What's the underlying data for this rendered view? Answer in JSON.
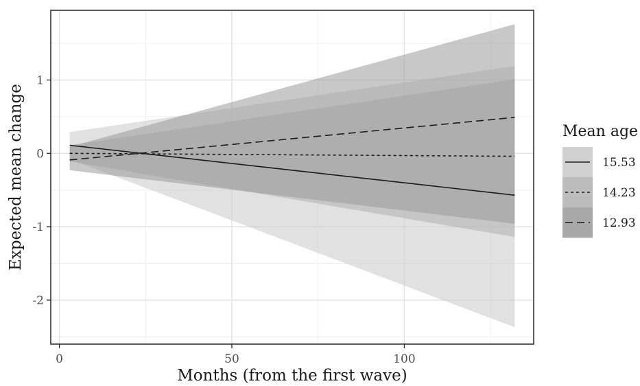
{
  "chart_data": {
    "type": "line",
    "xlabel": "Months (from the first wave)",
    "ylabel": "Expected mean change",
    "xlim": [
      -2.5,
      137.5
    ],
    "ylim": [
      -2.6,
      1.95
    ],
    "x_ticks": [
      0,
      50,
      100
    ],
    "x_tick_labels": [
      "0",
      "50",
      "100"
    ],
    "y_ticks": [
      -2,
      -1,
      0,
      1
    ],
    "y_tick_labels": [
      "-2",
      "-1",
      "0",
      "1"
    ],
    "grid": true,
    "legend": {
      "title": "Mean age",
      "placement": "right"
    },
    "series": [
      {
        "name": "15.53",
        "linestyle": "solid",
        "x": [
          3,
          132
        ],
        "y": [
          0.11,
          -0.57
        ],
        "ribbon_lower": [
          -0.08,
          -2.37
        ],
        "ribbon_upper": [
          0.29,
          1.19
        ],
        "ribbon_color": "#c8c8c8"
      },
      {
        "name": "14.23",
        "linestyle": "dotted",
        "x": [
          3,
          132
        ],
        "y": [
          0.0,
          -0.04
        ],
        "ribbon_lower": [
          -0.11,
          -1.14
        ],
        "ribbon_upper": [
          0.11,
          1.01
        ],
        "ribbon_color": "#b0b0b0"
      },
      {
        "name": "12.93",
        "linestyle": "dashed",
        "x": [
          3,
          132
        ],
        "y": [
          -0.09,
          0.49
        ],
        "ribbon_lower": [
          -0.23,
          -0.96
        ],
        "ribbon_upper": [
          0.09,
          1.76
        ],
        "ribbon_color": "#9a9a9a"
      }
    ]
  }
}
